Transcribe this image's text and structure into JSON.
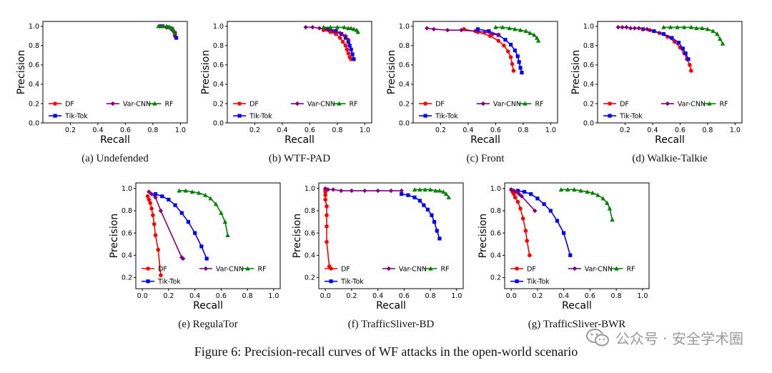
{
  "figure_caption": "Figure 6: Precision-recall curves of WF attacks in the open-world scenario",
  "watermark": "公众号 · 安全学术圈",
  "colors": {
    "DF": "#ff0000",
    "Tik-Tok": "#0000ff",
    "Var-CNN": "#800080",
    "RF": "#008000"
  },
  "chart_data": [
    {
      "type": "line",
      "caption": "(a) Undefended",
      "xlabel": "Recall",
      "ylabel": "Precision",
      "xlim": [
        0,
        1.05
      ],
      "ylim": [
        0,
        1.05
      ],
      "xticks": [
        "0.2",
        "0.4",
        "0.6",
        "0.8",
        "1.0"
      ],
      "yticks": [
        "0.0",
        "0.2",
        "0.4",
        "0.6",
        "0.8",
        "1.0"
      ],
      "legend": [
        "DF",
        "Tik-Tok",
        "Var-CNN",
        "RF"
      ],
      "series": [
        {
          "name": "DF",
          "x": [
            0.86,
            0.9,
            0.93,
            0.95,
            0.96
          ],
          "y": [
            1.0,
            0.99,
            0.98,
            0.95,
            0.9
          ]
        },
        {
          "name": "Tik-Tok",
          "x": [
            0.87,
            0.91,
            0.94,
            0.96,
            0.97
          ],
          "y": [
            1.0,
            0.99,
            0.97,
            0.93,
            0.88
          ]
        },
        {
          "name": "Var-CNN",
          "x": [
            0.85,
            0.9,
            0.94,
            0.96
          ],
          "y": [
            1.0,
            0.99,
            0.97,
            0.93
          ]
        },
        {
          "name": "RF",
          "x": [
            0.84,
            0.87,
            0.9,
            0.92,
            0.94,
            0.95,
            0.96
          ],
          "y": [
            1.0,
            1.0,
            1.0,
            0.99,
            0.98,
            0.96,
            0.93
          ]
        }
      ]
    },
    {
      "type": "line",
      "caption": "(b) WTF-PAD",
      "xlabel": "Recall",
      "ylabel": "Precision",
      "xlim": [
        0,
        1.05
      ],
      "ylim": [
        0,
        1.05
      ],
      "xticks": [
        "0.2",
        "0.4",
        "0.6",
        "0.8",
        "1.0"
      ],
      "yticks": [
        "0.0",
        "0.2",
        "0.4",
        "0.6",
        "0.8",
        "1.0"
      ],
      "legend": [
        "DF",
        "Tik-Tok",
        "Var-CNN",
        "RF"
      ],
      "series": [
        {
          "name": "DF",
          "x": [
            0.7,
            0.75,
            0.79,
            0.82,
            0.84,
            0.86,
            0.87,
            0.88,
            0.89,
            0.9
          ],
          "y": [
            0.96,
            0.94,
            0.92,
            0.88,
            0.84,
            0.8,
            0.76,
            0.72,
            0.68,
            0.66
          ]
        },
        {
          "name": "Tik-Tok",
          "x": [
            0.74,
            0.79,
            0.83,
            0.86,
            0.88,
            0.89,
            0.9,
            0.91,
            0.92
          ],
          "y": [
            0.97,
            0.95,
            0.92,
            0.88,
            0.84,
            0.8,
            0.76,
            0.71,
            0.66
          ]
        },
        {
          "name": "Var-CNN",
          "x": [
            0.57,
            0.62,
            0.67,
            0.72,
            0.77,
            0.82,
            0.86,
            0.88
          ],
          "y": [
            0.99,
            0.99,
            0.98,
            0.97,
            0.95,
            0.93,
            0.9,
            0.86
          ]
        },
        {
          "name": "RF",
          "x": [
            0.7,
            0.75,
            0.8,
            0.85,
            0.88,
            0.9,
            0.92,
            0.94,
            0.95
          ],
          "y": [
            0.99,
            0.99,
            0.99,
            0.99,
            0.98,
            0.98,
            0.97,
            0.96,
            0.94
          ]
        }
      ]
    },
    {
      "type": "line",
      "caption": "(c) Front",
      "xlabel": "Recall",
      "ylabel": "Precision",
      "xlim": [
        0,
        1.05
      ],
      "ylim": [
        0,
        1.05
      ],
      "xticks": [
        "0.2",
        "0.4",
        "0.6",
        "0.8",
        "1.0"
      ],
      "yticks": [
        "0.0",
        "0.2",
        "0.4",
        "0.6",
        "0.8",
        "1.0"
      ],
      "legend": [
        "DF",
        "Tik-Tok",
        "Var-CNN",
        "RF"
      ],
      "series": [
        {
          "name": "DF",
          "x": [
            0.37,
            0.47,
            0.56,
            0.62,
            0.66,
            0.69,
            0.71,
            0.72,
            0.73
          ],
          "y": [
            0.97,
            0.94,
            0.9,
            0.85,
            0.8,
            0.74,
            0.68,
            0.61,
            0.54
          ]
        },
        {
          "name": "Tik-Tok",
          "x": [
            0.47,
            0.55,
            0.62,
            0.67,
            0.71,
            0.74,
            0.76,
            0.77,
            0.78,
            0.79
          ],
          "y": [
            0.97,
            0.95,
            0.91,
            0.86,
            0.81,
            0.75,
            0.69,
            0.63,
            0.57,
            0.52
          ]
        },
        {
          "name": "Var-CNN",
          "x": [
            0.1,
            0.15,
            0.25,
            0.35,
            0.45,
            0.52,
            0.58,
            0.62
          ],
          "y": [
            0.98,
            0.97,
            0.96,
            0.96,
            0.95,
            0.94,
            0.92,
            0.91
          ]
        },
        {
          "name": "RF",
          "x": [
            0.6,
            0.65,
            0.7,
            0.74,
            0.78,
            0.82,
            0.85,
            0.88,
            0.9,
            0.91
          ],
          "y": [
            0.99,
            0.99,
            0.98,
            0.97,
            0.96,
            0.95,
            0.93,
            0.91,
            0.88,
            0.85
          ]
        }
      ]
    },
    {
      "type": "line",
      "caption": "(d) Walkie-Talkie",
      "xlabel": "Recall",
      "ylabel": "Precision",
      "xlim": [
        0,
        1.05
      ],
      "ylim": [
        0,
        1.05
      ],
      "xticks": [
        "0.2",
        "0.4",
        "0.6",
        "0.8",
        "1.0"
      ],
      "yticks": [
        "0.0",
        "0.2",
        "0.4",
        "0.6",
        "0.8",
        "1.0"
      ],
      "legend": [
        "DF",
        "Tik-Tok",
        "Var-CNN",
        "RF"
      ],
      "series": [
        {
          "name": "DF",
          "x": [
            0.38,
            0.45,
            0.51,
            0.56,
            0.6,
            0.63,
            0.65,
            0.67,
            0.68
          ],
          "y": [
            0.96,
            0.93,
            0.89,
            0.84,
            0.78,
            0.72,
            0.66,
            0.6,
            0.54
          ]
        },
        {
          "name": "Tik-Tok",
          "x": [
            0.33,
            0.41,
            0.48,
            0.54,
            0.59,
            0.62,
            0.64,
            0.66
          ],
          "y": [
            0.97,
            0.95,
            0.92,
            0.88,
            0.83,
            0.77,
            0.72,
            0.66
          ]
        },
        {
          "name": "Var-CNN",
          "x": [
            0.15,
            0.18,
            0.21,
            0.24,
            0.27,
            0.3,
            0.33,
            0.36
          ],
          "y": [
            0.99,
            0.99,
            0.99,
            0.98,
            0.98,
            0.98,
            0.97,
            0.97
          ]
        },
        {
          "name": "RF",
          "x": [
            0.48,
            0.53,
            0.58,
            0.63,
            0.68,
            0.72,
            0.76,
            0.8,
            0.84,
            0.87,
            0.89,
            0.91
          ],
          "y": [
            0.99,
            0.99,
            0.99,
            0.99,
            0.99,
            0.98,
            0.98,
            0.97,
            0.95,
            0.92,
            0.87,
            0.82
          ]
        }
      ]
    },
    {
      "type": "line",
      "caption": "(e) RegulaTor",
      "xlabel": "Recall",
      "ylabel": "Precision",
      "xlim": [
        -0.05,
        1.05
      ],
      "ylim": [
        0.1,
        1.05
      ],
      "xticks": [
        "0.0",
        "0.2",
        "0.4",
        "0.6",
        "0.8",
        "1.0"
      ],
      "yticks": [
        "0.2",
        "0.4",
        "0.6",
        "0.8",
        "1.0"
      ],
      "legend": [
        "DF",
        "Tik-Tok",
        "Var-CNN",
        "RF"
      ],
      "series": [
        {
          "name": "DF",
          "x": [
            0.04,
            0.05,
            0.06,
            0.07,
            0.08,
            0.09,
            0.1,
            0.12,
            0.14
          ],
          "y": [
            0.93,
            0.9,
            0.87,
            0.82,
            0.76,
            0.68,
            0.58,
            0.45,
            0.22
          ]
        },
        {
          "name": "Tik-Tok",
          "x": [
            0.1,
            0.15,
            0.2,
            0.25,
            0.3,
            0.35,
            0.4,
            0.45,
            0.49
          ],
          "y": [
            0.95,
            0.93,
            0.9,
            0.85,
            0.78,
            0.7,
            0.6,
            0.48,
            0.37
          ]
        },
        {
          "name": "Var-CNN",
          "x": [
            0.05,
            0.07,
            0.1,
            0.14,
            0.3,
            0.31
          ],
          "y": [
            0.97,
            0.95,
            0.92,
            0.8,
            0.38,
            0.37
          ]
        },
        {
          "name": "RF",
          "x": [
            0.28,
            0.33,
            0.38,
            0.43,
            0.48,
            0.52,
            0.56,
            0.6,
            0.63,
            0.65
          ],
          "y": [
            0.98,
            0.98,
            0.97,
            0.96,
            0.94,
            0.91,
            0.86,
            0.78,
            0.7,
            0.58
          ]
        }
      ]
    },
    {
      "type": "line",
      "caption": "(f) TrafficSliver-BD",
      "xlabel": "Recall",
      "ylabel": "Precision",
      "xlim": [
        -0.05,
        1.05
      ],
      "ylim": [
        0.1,
        1.05
      ],
      "xticks": [
        "0.0",
        "0.2",
        "0.4",
        "0.6",
        "0.8",
        "1.0"
      ],
      "yticks": [
        "0.2",
        "0.4",
        "0.6",
        "0.8",
        "1.0"
      ],
      "legend": [
        "DF",
        "Tik-Tok",
        "Var-CNN",
        "RF"
      ],
      "series": [
        {
          "name": "DF",
          "x": [
            0.0,
            0.0,
            0.0,
            0.0,
            0.01,
            0.01,
            0.01,
            0.01,
            0.03
          ],
          "y": [
            0.99,
            0.97,
            0.94,
            0.9,
            0.84,
            0.76,
            0.66,
            0.52,
            0.3
          ]
        },
        {
          "name": "Tik-Tok",
          "x": [
            0.58,
            0.63,
            0.68,
            0.72,
            0.75,
            0.78,
            0.81,
            0.83,
            0.85,
            0.87
          ],
          "y": [
            0.95,
            0.94,
            0.92,
            0.89,
            0.85,
            0.81,
            0.76,
            0.7,
            0.62,
            0.55
          ]
        },
        {
          "name": "Var-CNN",
          "x": [
            0.0,
            0.02,
            0.06,
            0.12,
            0.2,
            0.3,
            0.4,
            0.5,
            0.58
          ],
          "y": [
            1.0,
            0.99,
            0.99,
            0.98,
            0.98,
            0.98,
            0.98,
            0.98,
            0.98
          ]
        },
        {
          "name": "RF",
          "x": [
            0.68,
            0.72,
            0.76,
            0.8,
            0.84,
            0.87,
            0.9,
            0.92,
            0.94
          ],
          "y": [
            0.99,
            0.99,
            0.99,
            0.99,
            0.98,
            0.98,
            0.97,
            0.95,
            0.92
          ]
        }
      ]
    },
    {
      "type": "line",
      "caption": "(g) TrafficSliver-BWR",
      "xlabel": "Recall",
      "ylabel": "Precision",
      "xlim": [
        -0.05,
        1.05
      ],
      "ylim": [
        0.1,
        1.05
      ],
      "xticks": [
        "0.0",
        "0.2",
        "0.4",
        "0.6",
        "0.8",
        "1.0"
      ],
      "yticks": [
        "0.2",
        "0.4",
        "0.6",
        "0.8",
        "1.0"
      ],
      "legend": [
        "DF",
        "Tik-Tok",
        "Var-CNN",
        "RF"
      ],
      "series": [
        {
          "name": "DF",
          "x": [
            0.0,
            0.01,
            0.02,
            0.03,
            0.05,
            0.07,
            0.09,
            0.11,
            0.12,
            0.14
          ],
          "y": [
            0.99,
            0.97,
            0.95,
            0.92,
            0.88,
            0.82,
            0.73,
            0.62,
            0.53,
            0.4
          ]
        },
        {
          "name": "Tik-Tok",
          "x": [
            0.05,
            0.1,
            0.15,
            0.2,
            0.25,
            0.3,
            0.35,
            0.4,
            0.45
          ],
          "y": [
            0.98,
            0.97,
            0.95,
            0.91,
            0.86,
            0.8,
            0.71,
            0.6,
            0.4
          ]
        },
        {
          "name": "Var-CNN",
          "x": [
            0.0,
            0.02,
            0.04,
            0.06,
            0.08,
            0.18
          ],
          "y": [
            0.99,
            0.98,
            0.97,
            0.95,
            0.93,
            0.8
          ]
        },
        {
          "name": "RF",
          "x": [
            0.38,
            0.43,
            0.48,
            0.53,
            0.58,
            0.62,
            0.66,
            0.7,
            0.73,
            0.75,
            0.77
          ],
          "y": [
            0.99,
            0.99,
            0.99,
            0.98,
            0.97,
            0.96,
            0.94,
            0.91,
            0.87,
            0.82,
            0.72
          ]
        }
      ]
    }
  ]
}
